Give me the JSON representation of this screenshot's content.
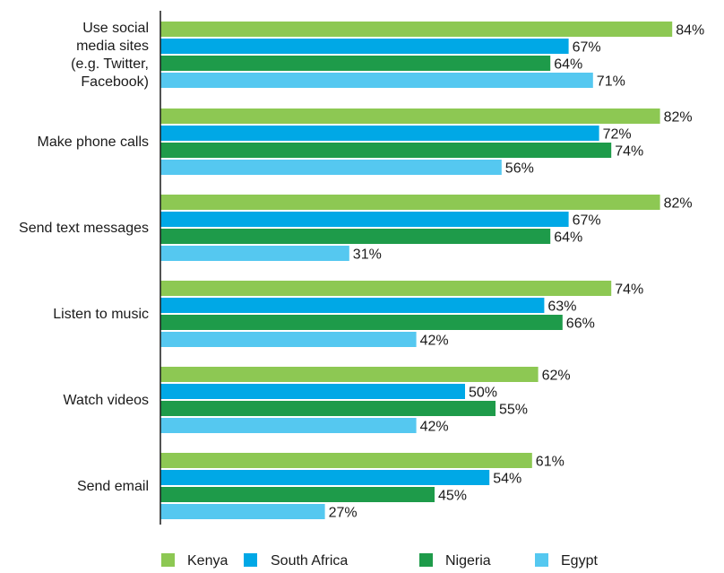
{
  "chart_data": {
    "type": "bar",
    "orientation": "horizontal",
    "categories": [
      "Use social media sites (e.g. Twitter, Facebook)",
      "Make phone calls",
      "Send text messages",
      "Listen to music",
      "Watch videos",
      "Send email"
    ],
    "category_lines": [
      [
        "Use social",
        "media sites",
        "(e.g. Twitter,",
        "Facebook)"
      ],
      [
        "Make phone calls"
      ],
      [
        "Send text messages"
      ],
      [
        "Listen to music"
      ],
      [
        "Watch videos"
      ],
      [
        "Send email"
      ]
    ],
    "series": [
      {
        "name": "Kenya",
        "color": "#8dc853",
        "values": [
          84,
          82,
          82,
          74,
          62,
          61
        ]
      },
      {
        "name": "South Africa",
        "color": "#00a8e6",
        "values": [
          67,
          72,
          67,
          63,
          50,
          54
        ]
      },
      {
        "name": "Nigeria",
        "color": "#1e9b4a",
        "values": [
          64,
          74,
          64,
          66,
          55,
          45
        ]
      },
      {
        "name": "Egypt",
        "color": "#55c8f0",
        "values": [
          71,
          56,
          31,
          42,
          42,
          27
        ]
      }
    ],
    "value_suffix": "%",
    "xlim": [
      0,
      100
    ],
    "grid": false,
    "legend": "bottom",
    "title": "",
    "xlabel": "",
    "ylabel": ""
  }
}
